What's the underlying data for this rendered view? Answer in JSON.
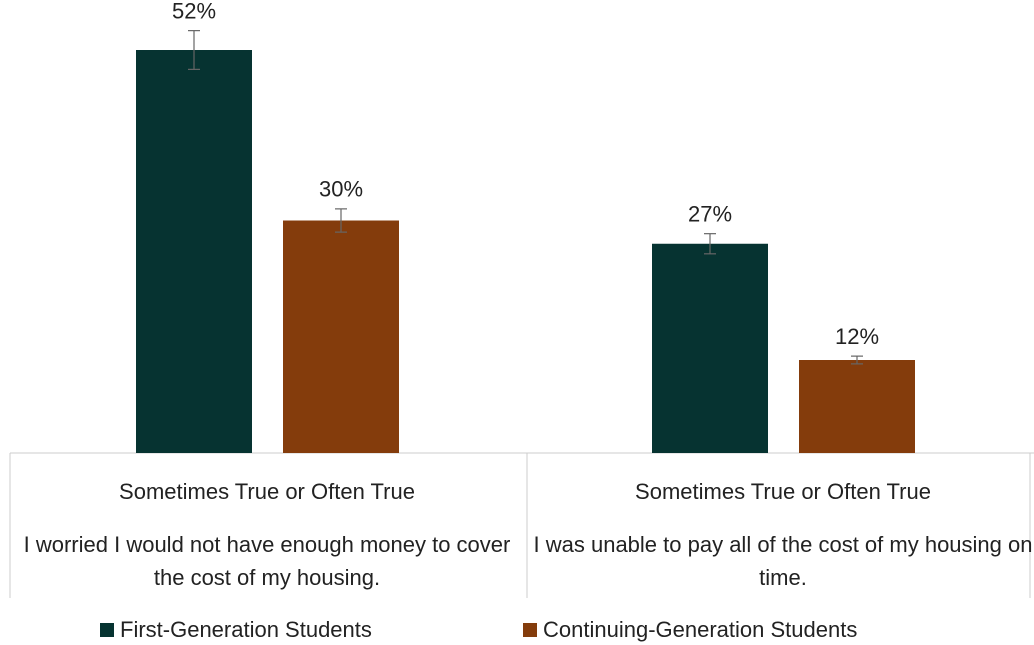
{
  "chart_data": {
    "type": "bar",
    "categories": [
      "I worried I would not have enough money to cover the cost of my housing.",
      "I was unable to pay all of the cost of my housing on time."
    ],
    "category_headers": [
      "Sometimes True or Often True",
      "Sometimes True or Often True"
    ],
    "series": [
      {
        "name": "First-Generation Students",
        "color": "#063331",
        "values": [
          52,
          27
        ],
        "value_labels": [
          "52%",
          "27%"
        ],
        "errors": [
          2.5,
          1.3
        ]
      },
      {
        "name": "Continuing-Generation Students",
        "color": "#843c0c",
        "values": [
          30,
          12
        ],
        "value_labels": [
          "30%",
          "12%"
        ],
        "errors": [
          1.5,
          0.5
        ]
      }
    ],
    "legend": "bottom"
  }
}
